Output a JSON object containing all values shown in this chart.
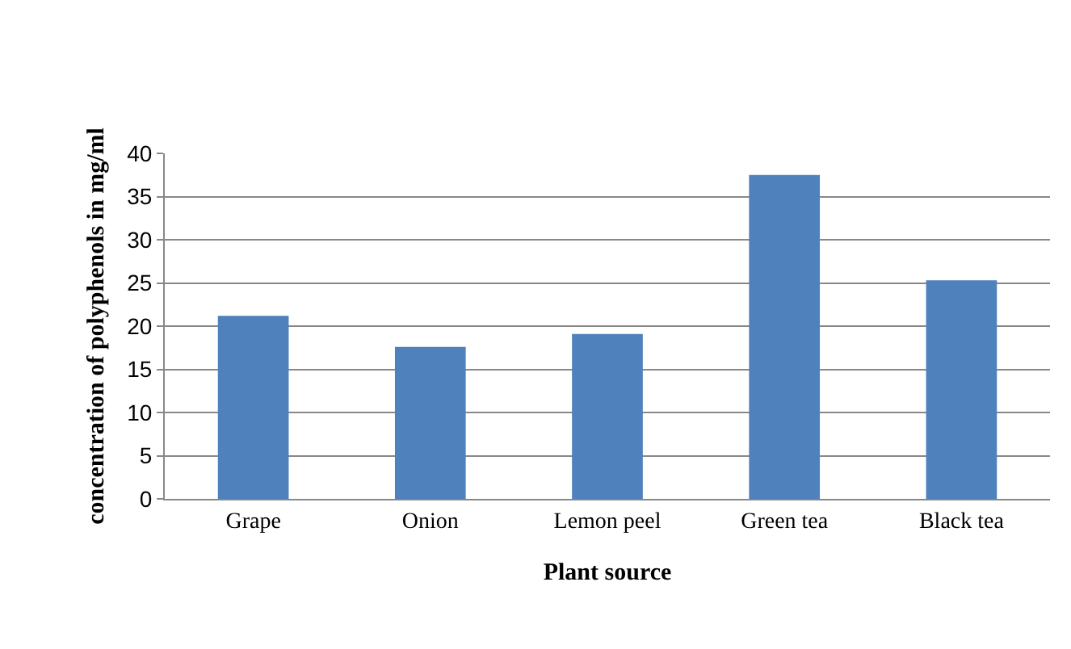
{
  "chart_data": {
    "type": "bar",
    "xlabel": "Plant source",
    "ylabel": "concentration of polyphenols in mg/ml",
    "categories": [
      "Grape",
      "Onion",
      "Lemon peel",
      "Green tea",
      "Black tea"
    ],
    "values": [
      21.2,
      17.6,
      19.1,
      37.5,
      25.3
    ],
    "color": "#4f81bd",
    "ylim": [
      0,
      40
    ],
    "yticks": [
      0,
      5,
      10,
      15,
      20,
      25,
      30,
      35,
      40
    ],
    "grid": "y"
  }
}
